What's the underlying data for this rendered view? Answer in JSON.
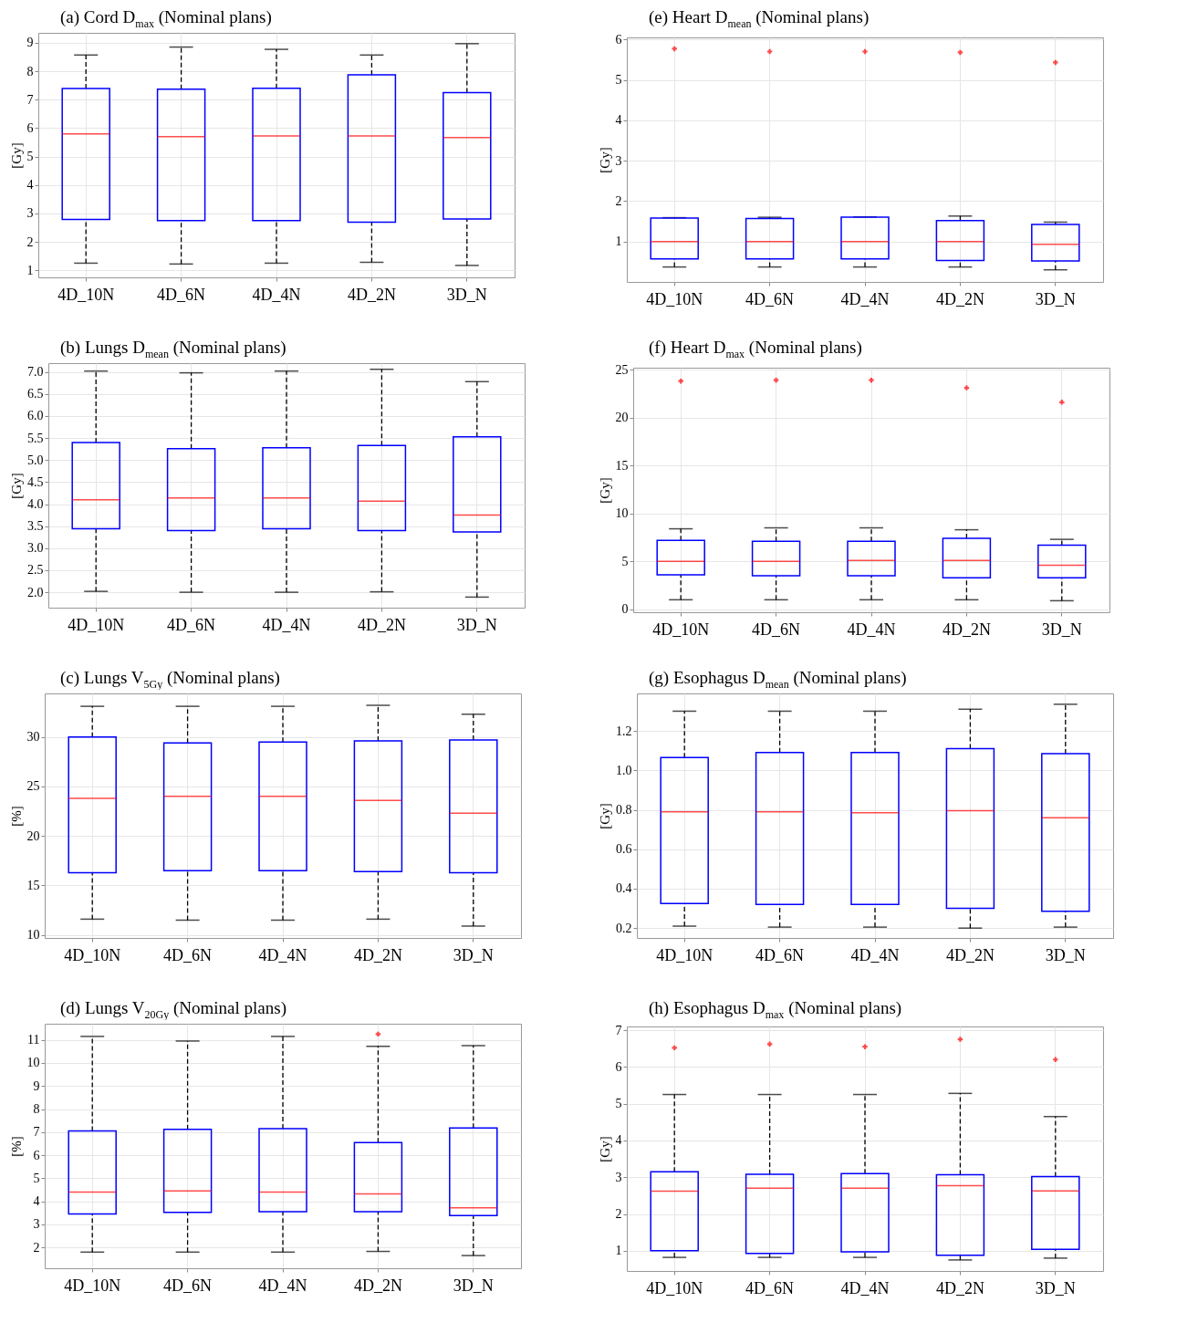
{
  "chart_data": [
    {
      "type": "box",
      "title": "(a) Cord D$_{max}$ (Nominal plans)",
      "ylabel": "[Gy]",
      "categories": [
        "4D_10N",
        "4D_6N",
        "4D_4N",
        "4D_2N",
        "3D_N"
      ],
      "ylim": [
        0.75,
        9.35
      ],
      "yticks": [
        1,
        2,
        3,
        4,
        5,
        6,
        7,
        8,
        9
      ],
      "grid": true,
      "boxes": [
        {
          "low": 1.25,
          "q1": 2.79,
          "median": 5.8,
          "q3": 7.39,
          "high": 8.57
        },
        {
          "low": 1.22,
          "q1": 2.75,
          "median": 5.7,
          "q3": 7.37,
          "high": 8.85
        },
        {
          "low": 1.25,
          "q1": 2.75,
          "median": 5.72,
          "q3": 7.4,
          "high": 8.77
        },
        {
          "low": 1.28,
          "q1": 2.69,
          "median": 5.72,
          "q3": 7.87,
          "high": 8.57
        },
        {
          "low": 1.17,
          "q1": 2.8,
          "median": 5.67,
          "q3": 7.25,
          "high": 8.97
        }
      ]
    },
    {
      "type": "box",
      "title": "(b) Lungs D$_{mean}$ (Nominal plans)",
      "ylabel": "[Gy]",
      "categories": [
        "4D_10N",
        "4D_6N",
        "4D_4N",
        "4D_2N",
        "3D_N"
      ],
      "ylim": [
        1.65,
        7.2
      ],
      "yticks": [
        {
          "value": 2,
          "label": "2.0"
        },
        2.5,
        {
          "value": 3,
          "label": "3.0"
        },
        3.5,
        {
          "value": 4,
          "label": "4.0"
        },
        4.5,
        {
          "value": 5,
          "label": "5.0"
        },
        5.5,
        {
          "value": 6,
          "label": "6.0"
        },
        6.5,
        {
          "value": 7,
          "label": "7.0"
        }
      ],
      "grid": true,
      "boxes": [
        {
          "low": 2.02,
          "q1": 3.44,
          "median": 4.1,
          "q3": 5.4,
          "high": 7.02
        },
        {
          "low": 2.0,
          "q1": 3.4,
          "median": 4.14,
          "q3": 5.26,
          "high": 6.98
        },
        {
          "low": 2.0,
          "q1": 3.44,
          "median": 4.14,
          "q3": 5.28,
          "high": 7.02
        },
        {
          "low": 2.01,
          "q1": 3.4,
          "median": 4.07,
          "q3": 5.33,
          "high": 7.06
        },
        {
          "low": 1.89,
          "q1": 3.37,
          "median": 3.75,
          "q3": 5.53,
          "high": 6.78
        }
      ]
    },
    {
      "type": "box",
      "title": "(c) Lungs V$_{5Gy}$ (Nominal plans)",
      "ylabel": "[%]",
      "categories": [
        "4D_10N",
        "4D_6N",
        "4D_4N",
        "4D_2N",
        "3D_N"
      ],
      "ylim": [
        9.7,
        34.4
      ],
      "yticks": [
        10,
        15,
        20,
        25,
        30
      ],
      "grid": true,
      "boxes": [
        {
          "low": 11.6,
          "q1": 16.3,
          "median": 23.8,
          "q3": 30.0,
          "high": 33.1
        },
        {
          "low": 11.5,
          "q1": 16.5,
          "median": 24.0,
          "q3": 29.4,
          "high": 33.1
        },
        {
          "low": 11.5,
          "q1": 16.5,
          "median": 24.0,
          "q3": 29.5,
          "high": 33.1
        },
        {
          "low": 11.6,
          "q1": 16.4,
          "median": 23.6,
          "q3": 29.6,
          "high": 33.2
        },
        {
          "low": 10.9,
          "q1": 16.3,
          "median": 22.3,
          "q3": 29.7,
          "high": 32.3
        }
      ]
    },
    {
      "type": "box",
      "title": "(d) Lungs V$_{20Gy}$ (Nominal plans)",
      "ylabel": "[%]",
      "categories": [
        "4D_10N",
        "4D_6N",
        "4D_4N",
        "4D_2N",
        "3D_N"
      ],
      "ylim": [
        1.1,
        11.7
      ],
      "yticks": [
        2,
        3,
        4,
        5,
        6,
        7,
        8,
        9,
        10,
        11
      ],
      "grid": true,
      "boxes": [
        {
          "low": 1.8,
          "q1": 3.45,
          "median": 4.4,
          "q3": 7.05,
          "high": 11.15
        },
        {
          "low": 1.8,
          "q1": 3.52,
          "median": 4.45,
          "q3": 7.12,
          "high": 10.95
        },
        {
          "low": 1.8,
          "q1": 3.55,
          "median": 4.4,
          "q3": 7.15,
          "high": 11.15
        },
        {
          "low": 1.83,
          "q1": 3.55,
          "median": 4.32,
          "q3": 6.55,
          "high": 10.72,
          "outliers": [
            11.25
          ]
        },
        {
          "low": 1.65,
          "q1": 3.38,
          "median": 3.72,
          "q3": 7.18,
          "high": 10.75
        }
      ]
    },
    {
      "type": "box",
      "title": "(e) Heart D$_{mean}$ (Nominal plans)",
      "ylabel": "[Gy]",
      "categories": [
        "4D_10N",
        "4D_6N",
        "4D_4N",
        "4D_2N",
        "3D_N"
      ],
      "ylim": [
        0,
        6.05
      ],
      "yticks": [
        1,
        2,
        3,
        4,
        5,
        6
      ],
      "grid": true,
      "boxes": [
        {
          "low": 0.37,
          "q1": 0.57,
          "median": 1.0,
          "q3": 1.58,
          "high": 1.59,
          "outliers": [
            5.77
          ]
        },
        {
          "low": 0.37,
          "q1": 0.57,
          "median": 1.0,
          "q3": 1.57,
          "high": 1.6,
          "outliers": [
            5.7
          ]
        },
        {
          "low": 0.37,
          "q1": 0.57,
          "median": 1.0,
          "q3": 1.6,
          "high": 1.61,
          "outliers": [
            5.7
          ]
        },
        {
          "low": 0.37,
          "q1": 0.53,
          "median": 1.0,
          "q3": 1.52,
          "high": 1.63,
          "outliers": [
            5.68
          ]
        },
        {
          "low": 0.3,
          "q1": 0.52,
          "median": 0.93,
          "q3": 1.42,
          "high": 1.48,
          "outliers": [
            5.43
          ]
        }
      ]
    },
    {
      "type": "box",
      "title": "(f) Heart D$_{max}$ (Nominal plans)",
      "ylabel": "[Gy]",
      "categories": [
        "4D_10N",
        "4D_6N",
        "4D_4N",
        "4D_2N",
        "3D_N"
      ],
      "ylim": [
        -0.3,
        25.2
      ],
      "yticks": [
        0,
        5,
        10,
        15,
        20,
        25
      ],
      "grid": true,
      "boxes": [
        {
          "low": 1.0,
          "q1": 3.6,
          "median": 5.0,
          "q3": 7.2,
          "high": 8.4,
          "outliers": [
            23.8
          ]
        },
        {
          "low": 1.0,
          "q1": 3.5,
          "median": 5.0,
          "q3": 7.1,
          "high": 8.5,
          "outliers": [
            23.9
          ]
        },
        {
          "low": 1.0,
          "q1": 3.5,
          "median": 5.1,
          "q3": 7.1,
          "high": 8.5,
          "outliers": [
            23.9
          ]
        },
        {
          "low": 1.0,
          "q1": 3.3,
          "median": 5.1,
          "q3": 7.4,
          "high": 8.3,
          "outliers": [
            23.1
          ]
        },
        {
          "low": 0.9,
          "q1": 3.3,
          "median": 4.6,
          "q3": 6.7,
          "high": 7.3,
          "outliers": [
            21.6
          ]
        }
      ]
    },
    {
      "type": "box",
      "title": "(g) Esophagus D$_{mean}$ (Nominal plans)",
      "ylabel": "[Gy]",
      "categories": [
        "4D_10N",
        "4D_6N",
        "4D_4N",
        "4D_2N",
        "3D_N"
      ],
      "ylim": [
        0.15,
        1.39
      ],
      "yticks": [
        0.2,
        0.4,
        0.6,
        0.8,
        {
          "value": 1,
          "label": "1.0"
        },
        1.2
      ],
      "grid": true,
      "boxes": [
        {
          "low": 0.21,
          "q1": 0.325,
          "median": 0.79,
          "q3": 1.065,
          "high": 1.3
        },
        {
          "low": 0.205,
          "q1": 0.32,
          "median": 0.79,
          "q3": 1.09,
          "high": 1.3
        },
        {
          "low": 0.205,
          "q1": 0.32,
          "median": 0.785,
          "q3": 1.09,
          "high": 1.3
        },
        {
          "low": 0.2,
          "q1": 0.3,
          "median": 0.795,
          "q3": 1.11,
          "high": 1.31
        },
        {
          "low": 0.205,
          "q1": 0.285,
          "median": 0.76,
          "q3": 1.085,
          "high": 1.335
        }
      ]
    },
    {
      "type": "box",
      "title": "(h) Esophagus D$_{max}$ (Nominal plans)",
      "ylabel": "[Gy]",
      "categories": [
        "4D_10N",
        "4D_6N",
        "4D_4N",
        "4D_2N",
        "3D_N"
      ],
      "ylim": [
        0.45,
        7.1
      ],
      "yticks": [
        1,
        2,
        3,
        4,
        5,
        6,
        7
      ],
      "grid": true,
      "boxes": [
        {
          "low": 0.82,
          "q1": 1.0,
          "median": 2.62,
          "q3": 3.15,
          "high": 5.25,
          "outliers": [
            6.52
          ]
        },
        {
          "low": 0.82,
          "q1": 0.93,
          "median": 2.7,
          "q3": 3.08,
          "high": 5.25,
          "outliers": [
            6.62
          ]
        },
        {
          "low": 0.82,
          "q1": 0.97,
          "median": 2.7,
          "q3": 3.1,
          "high": 5.25,
          "outliers": [
            6.55
          ]
        },
        {
          "low": 0.75,
          "q1": 0.88,
          "median": 2.77,
          "q3": 3.07,
          "high": 5.28,
          "outliers": [
            6.75
          ]
        },
        {
          "low": 0.8,
          "q1": 1.04,
          "median": 2.63,
          "q3": 3.02,
          "high": 4.65,
          "outliers": [
            6.2
          ]
        }
      ]
    }
  ]
}
